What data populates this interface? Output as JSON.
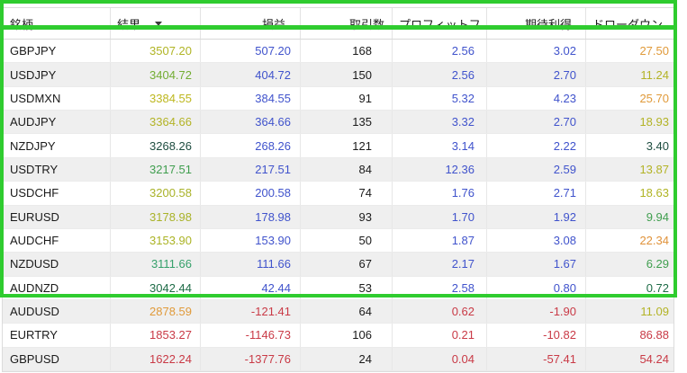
{
  "annotation": {
    "color": "#2fcc2f",
    "boxes": [
      "outer-top-block",
      "row-USDJPY",
      "row-AUDJPY"
    ]
  },
  "table": {
    "columns": [
      {
        "key": "symbol",
        "label": "銘柄"
      },
      {
        "key": "result",
        "label": "結果",
        "sorted": "descending"
      },
      {
        "key": "profit",
        "label": "損益"
      },
      {
        "key": "trades",
        "label": "取引数"
      },
      {
        "key": "profit_factor",
        "label": "プロフィットフ..."
      },
      {
        "key": "expected_payoff",
        "label": "期待利得"
      },
      {
        "key": "drawdown",
        "label": "ドローダウン ..."
      }
    ],
    "rows": [
      {
        "symbol": "GBPJPY",
        "result": "3507.20",
        "profit": "507.20",
        "trades": "168",
        "profit_factor": "2.56",
        "expected_payoff": "3.02",
        "drawdown": "27.50",
        "colors": {
          "result": "#b0b424",
          "profit": "#4053cc",
          "profit_factor": "#4053cc",
          "expected_payoff": "#4053cc",
          "drawdown": "#e09a3a"
        }
      },
      {
        "symbol": "USDJPY",
        "result": "3404.72",
        "profit": "404.72",
        "trades": "150",
        "profit_factor": "2.56",
        "expected_payoff": "2.70",
        "drawdown": "11.24",
        "colors": {
          "result": "#72ad32",
          "profit": "#4053cc",
          "profit_factor": "#4053cc",
          "expected_payoff": "#4053cc",
          "drawdown": "#b3b326"
        }
      },
      {
        "symbol": "USDMXN",
        "result": "3384.55",
        "profit": "384.55",
        "trades": "91",
        "profit_factor": "5.32",
        "expected_payoff": "4.23",
        "drawdown": "25.70",
        "colors": {
          "result": "#bdb71e",
          "profit": "#4053cc",
          "profit_factor": "#4053cc",
          "expected_payoff": "#4053cc",
          "drawdown": "#e09a3a"
        }
      },
      {
        "symbol": "AUDJPY",
        "result": "3364.66",
        "profit": "364.66",
        "trades": "135",
        "profit_factor": "3.32",
        "expected_payoff": "2.70",
        "drawdown": "18.93",
        "colors": {
          "result": "#b3b326",
          "profit": "#4053cc",
          "profit_factor": "#4053cc",
          "expected_payoff": "#4053cc",
          "drawdown": "#b3b326"
        }
      },
      {
        "symbol": "NZDJPY",
        "result": "3268.26",
        "profit": "268.26",
        "trades": "121",
        "profit_factor": "3.14",
        "expected_payoff": "2.22",
        "drawdown": "3.40",
        "colors": {
          "result": "#1e4d40",
          "profit": "#4053cc",
          "profit_factor": "#4053cc",
          "expected_payoff": "#4053cc",
          "drawdown": "#1e4d40"
        }
      },
      {
        "symbol": "USDTRY",
        "result": "3217.51",
        "profit": "217.51",
        "trades": "84",
        "profit_factor": "12.36",
        "expected_payoff": "2.59",
        "drawdown": "13.87",
        "colors": {
          "result": "#3f9e4e",
          "profit": "#4053cc",
          "profit_factor": "#4053cc",
          "expected_payoff": "#4053cc",
          "drawdown": "#b3b326"
        }
      },
      {
        "symbol": "USDCHF",
        "result": "3200.58",
        "profit": "200.58",
        "trades": "74",
        "profit_factor": "1.76",
        "expected_payoff": "2.71",
        "drawdown": "18.63",
        "colors": {
          "result": "#a9b228",
          "profit": "#4053cc",
          "profit_factor": "#4053cc",
          "expected_payoff": "#4053cc",
          "drawdown": "#b0b424"
        }
      },
      {
        "symbol": "EURUSD",
        "result": "3178.98",
        "profit": "178.98",
        "trades": "93",
        "profit_factor": "1.70",
        "expected_payoff": "1.92",
        "drawdown": "9.94",
        "colors": {
          "result": "#a9b228",
          "profit": "#4053cc",
          "profit_factor": "#4053cc",
          "expected_payoff": "#4053cc",
          "drawdown": "#3f9e4e"
        }
      },
      {
        "symbol": "AUDCHF",
        "result": "3153.90",
        "profit": "153.90",
        "trades": "50",
        "profit_factor": "1.87",
        "expected_payoff": "3.08",
        "drawdown": "22.34",
        "colors": {
          "result": "#abb324",
          "profit": "#4053cc",
          "profit_factor": "#4053cc",
          "expected_payoff": "#4053cc",
          "drawdown": "#e0923a"
        }
      },
      {
        "symbol": "NZDUSD",
        "result": "3111.66",
        "profit": "111.66",
        "trades": "67",
        "profit_factor": "2.17",
        "expected_payoff": "1.67",
        "drawdown": "6.29",
        "colors": {
          "result": "#35a06a",
          "profit": "#4053cc",
          "profit_factor": "#4053cc",
          "expected_payoff": "#4053cc",
          "drawdown": "#3f9e4e"
        }
      },
      {
        "symbol": "AUDNZD",
        "result": "3042.44",
        "profit": "42.44",
        "trades": "53",
        "profit_factor": "2.58",
        "expected_payoff": "0.80",
        "drawdown": "0.72",
        "colors": {
          "result": "#1d6b46",
          "profit": "#4053cc",
          "profit_factor": "#4053cc",
          "expected_payoff": "#4053cc",
          "drawdown": "#1d6b46"
        }
      },
      {
        "symbol": "AUDUSD",
        "result": "2878.59",
        "profit": "-121.41",
        "trades": "64",
        "profit_factor": "0.62",
        "expected_payoff": "-1.90",
        "drawdown": "11.09",
        "colors": {
          "result": "#e09a3a",
          "profit": "#c93a46",
          "profit_factor": "#c93a46",
          "expected_payoff": "#c93a46",
          "drawdown": "#b3b326"
        }
      },
      {
        "symbol": "EURTRY",
        "result": "1853.27",
        "profit": "-1146.73",
        "trades": "106",
        "profit_factor": "0.21",
        "expected_payoff": "-10.82",
        "drawdown": "86.88",
        "colors": {
          "result": "#c93a46",
          "profit": "#c93a46",
          "profit_factor": "#c93a46",
          "expected_payoff": "#c93a46",
          "drawdown": "#c93a46"
        }
      },
      {
        "symbol": "GBPUSD",
        "result": "1622.24",
        "profit": "-1377.76",
        "trades": "24",
        "profit_factor": "0.04",
        "expected_payoff": "-57.41",
        "drawdown": "54.24",
        "colors": {
          "result": "#c93a46",
          "profit": "#c93a46",
          "profit_factor": "#c93a46",
          "expected_payoff": "#c93a46",
          "drawdown": "#c93a46"
        }
      }
    ]
  }
}
